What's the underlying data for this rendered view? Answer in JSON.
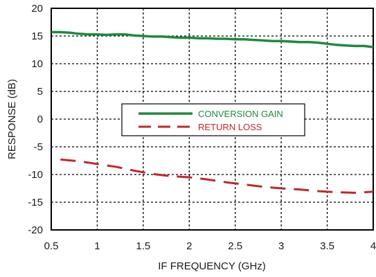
{
  "chart_data": {
    "type": "line",
    "title": "",
    "xlabel": "IF FREQUENCY (GHz)",
    "ylabel": "RESPONSE (dB)",
    "xlim": [
      0.5,
      4
    ],
    "ylim": [
      -20,
      20
    ],
    "xticks": [
      0.5,
      1,
      1.5,
      2,
      2.5,
      3,
      3.5,
      4
    ],
    "yticks": [
      -20,
      -15,
      -10,
      -5,
      0,
      5,
      10,
      15,
      20
    ],
    "xtick_labels": [
      "0.5",
      "1",
      "1.5",
      "2",
      "2.5",
      "3",
      "3.5",
      "4"
    ],
    "ytick_labels": [
      "-20",
      "-15",
      "-10",
      "-5",
      "0",
      "5",
      "10",
      "15",
      "20"
    ],
    "grid": true,
    "legend_position": "center",
    "series": [
      {
        "name": "CONVERSION GAIN",
        "color": "#1e8a3c",
        "style": "solid",
        "x": [
          0.5,
          0.6,
          0.7,
          0.8,
          0.9,
          1.0,
          1.1,
          1.2,
          1.3,
          1.4,
          1.5,
          1.6,
          1.7,
          1.8,
          1.9,
          2.0,
          2.1,
          2.2,
          2.3,
          2.4,
          2.5,
          2.6,
          2.7,
          2.8,
          2.9,
          3.0,
          3.1,
          3.2,
          3.3,
          3.4,
          3.5,
          3.6,
          3.7,
          3.8,
          3.9,
          4.0
        ],
        "y": [
          15.7,
          15.7,
          15.6,
          15.4,
          15.3,
          15.3,
          15.2,
          15.3,
          15.3,
          15.1,
          15.0,
          14.9,
          14.9,
          14.8,
          14.7,
          14.7,
          14.6,
          14.6,
          14.5,
          14.5,
          14.4,
          14.4,
          14.3,
          14.2,
          14.1,
          14.1,
          14.0,
          13.9,
          13.9,
          13.8,
          13.6,
          13.4,
          13.3,
          13.2,
          13.2,
          13.0
        ]
      },
      {
        "name": "RETURN LOSS",
        "color": "#c0272d",
        "style": "dashed",
        "x": [
          0.6,
          0.8,
          1.0,
          1.2,
          1.4,
          1.6,
          1.8,
          2.0,
          2.2,
          2.4,
          2.6,
          2.8,
          3.0,
          3.2,
          3.4,
          3.6,
          3.8,
          4.0
        ],
        "y": [
          -7.3,
          -7.6,
          -8.1,
          -8.6,
          -9.3,
          -9.9,
          -10.3,
          -10.5,
          -10.9,
          -11.4,
          -11.8,
          -12.2,
          -12.5,
          -12.7,
          -13.0,
          -13.2,
          -13.3,
          -13.1
        ]
      }
    ]
  }
}
